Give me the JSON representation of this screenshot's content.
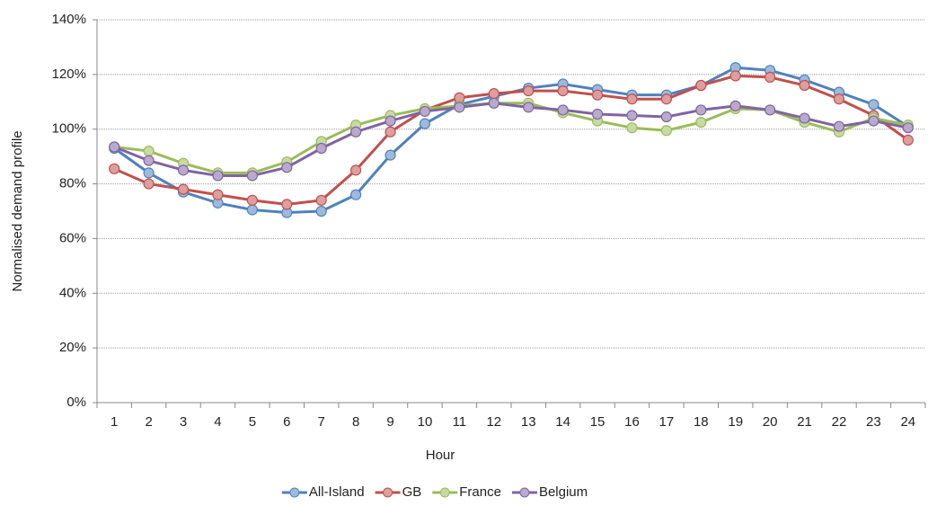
{
  "chart_data": {
    "type": "line",
    "x_label": "Hour",
    "y_label": "Normalised demand profile",
    "categories": [
      "1",
      "2",
      "3",
      "4",
      "5",
      "6",
      "7",
      "8",
      "9",
      "10",
      "11",
      "12",
      "13",
      "14",
      "15",
      "16",
      "17",
      "18",
      "19",
      "20",
      "21",
      "22",
      "23",
      "24"
    ],
    "series": [
      {
        "name": "All-Island",
        "color": "#4f81bd",
        "values": [
          93,
          84,
          77,
          73,
          70.5,
          69.5,
          70,
          76,
          90.5,
          102,
          109,
          112,
          115,
          116.5,
          114.5,
          112.5,
          112.5,
          116,
          122.5,
          121.5,
          118,
          113.5,
          109,
          101
        ]
      },
      {
        "name": "GB",
        "color": "#c0504d",
        "values": [
          85.5,
          80,
          78,
          76,
          74,
          72.5,
          74,
          85,
          99,
          107,
          111.5,
          113,
          114,
          114,
          112.5,
          111,
          111,
          116,
          119.5,
          119,
          116,
          111,
          105,
          96
        ]
      },
      {
        "name": "France",
        "color": "#9bbb59",
        "values": [
          93.5,
          92,
          87.5,
          84,
          84,
          88,
          95.5,
          101.5,
          105,
          107.5,
          108.5,
          109.5,
          109.5,
          106,
          103,
          100.5,
          99.5,
          102.5,
          107.5,
          107,
          102.5,
          99,
          104,
          101.5
        ]
      },
      {
        "name": "Belgium",
        "color": "#8064a2",
        "values": [
          93.5,
          88.5,
          85,
          83,
          83,
          86,
          93,
          99,
          103,
          106.5,
          108,
          109.5,
          108,
          107,
          105.5,
          105,
          104.5,
          107,
          108.5,
          107,
          104,
          101,
          103,
          100.5
        ]
      }
    ],
    "ylim": [
      0,
      140
    ],
    "yticks": [
      {
        "value": 0,
        "label": "0%"
      },
      {
        "value": 20,
        "label": "20%"
      },
      {
        "value": 40,
        "label": "40%"
      },
      {
        "value": 60,
        "label": "60%"
      },
      {
        "value": 80,
        "label": "80%"
      },
      {
        "value": 100,
        "label": "100%"
      },
      {
        "value": 120,
        "label": "120%"
      },
      {
        "value": 140,
        "label": "140%"
      }
    ],
    "grid": true,
    "legend": "bottom"
  }
}
